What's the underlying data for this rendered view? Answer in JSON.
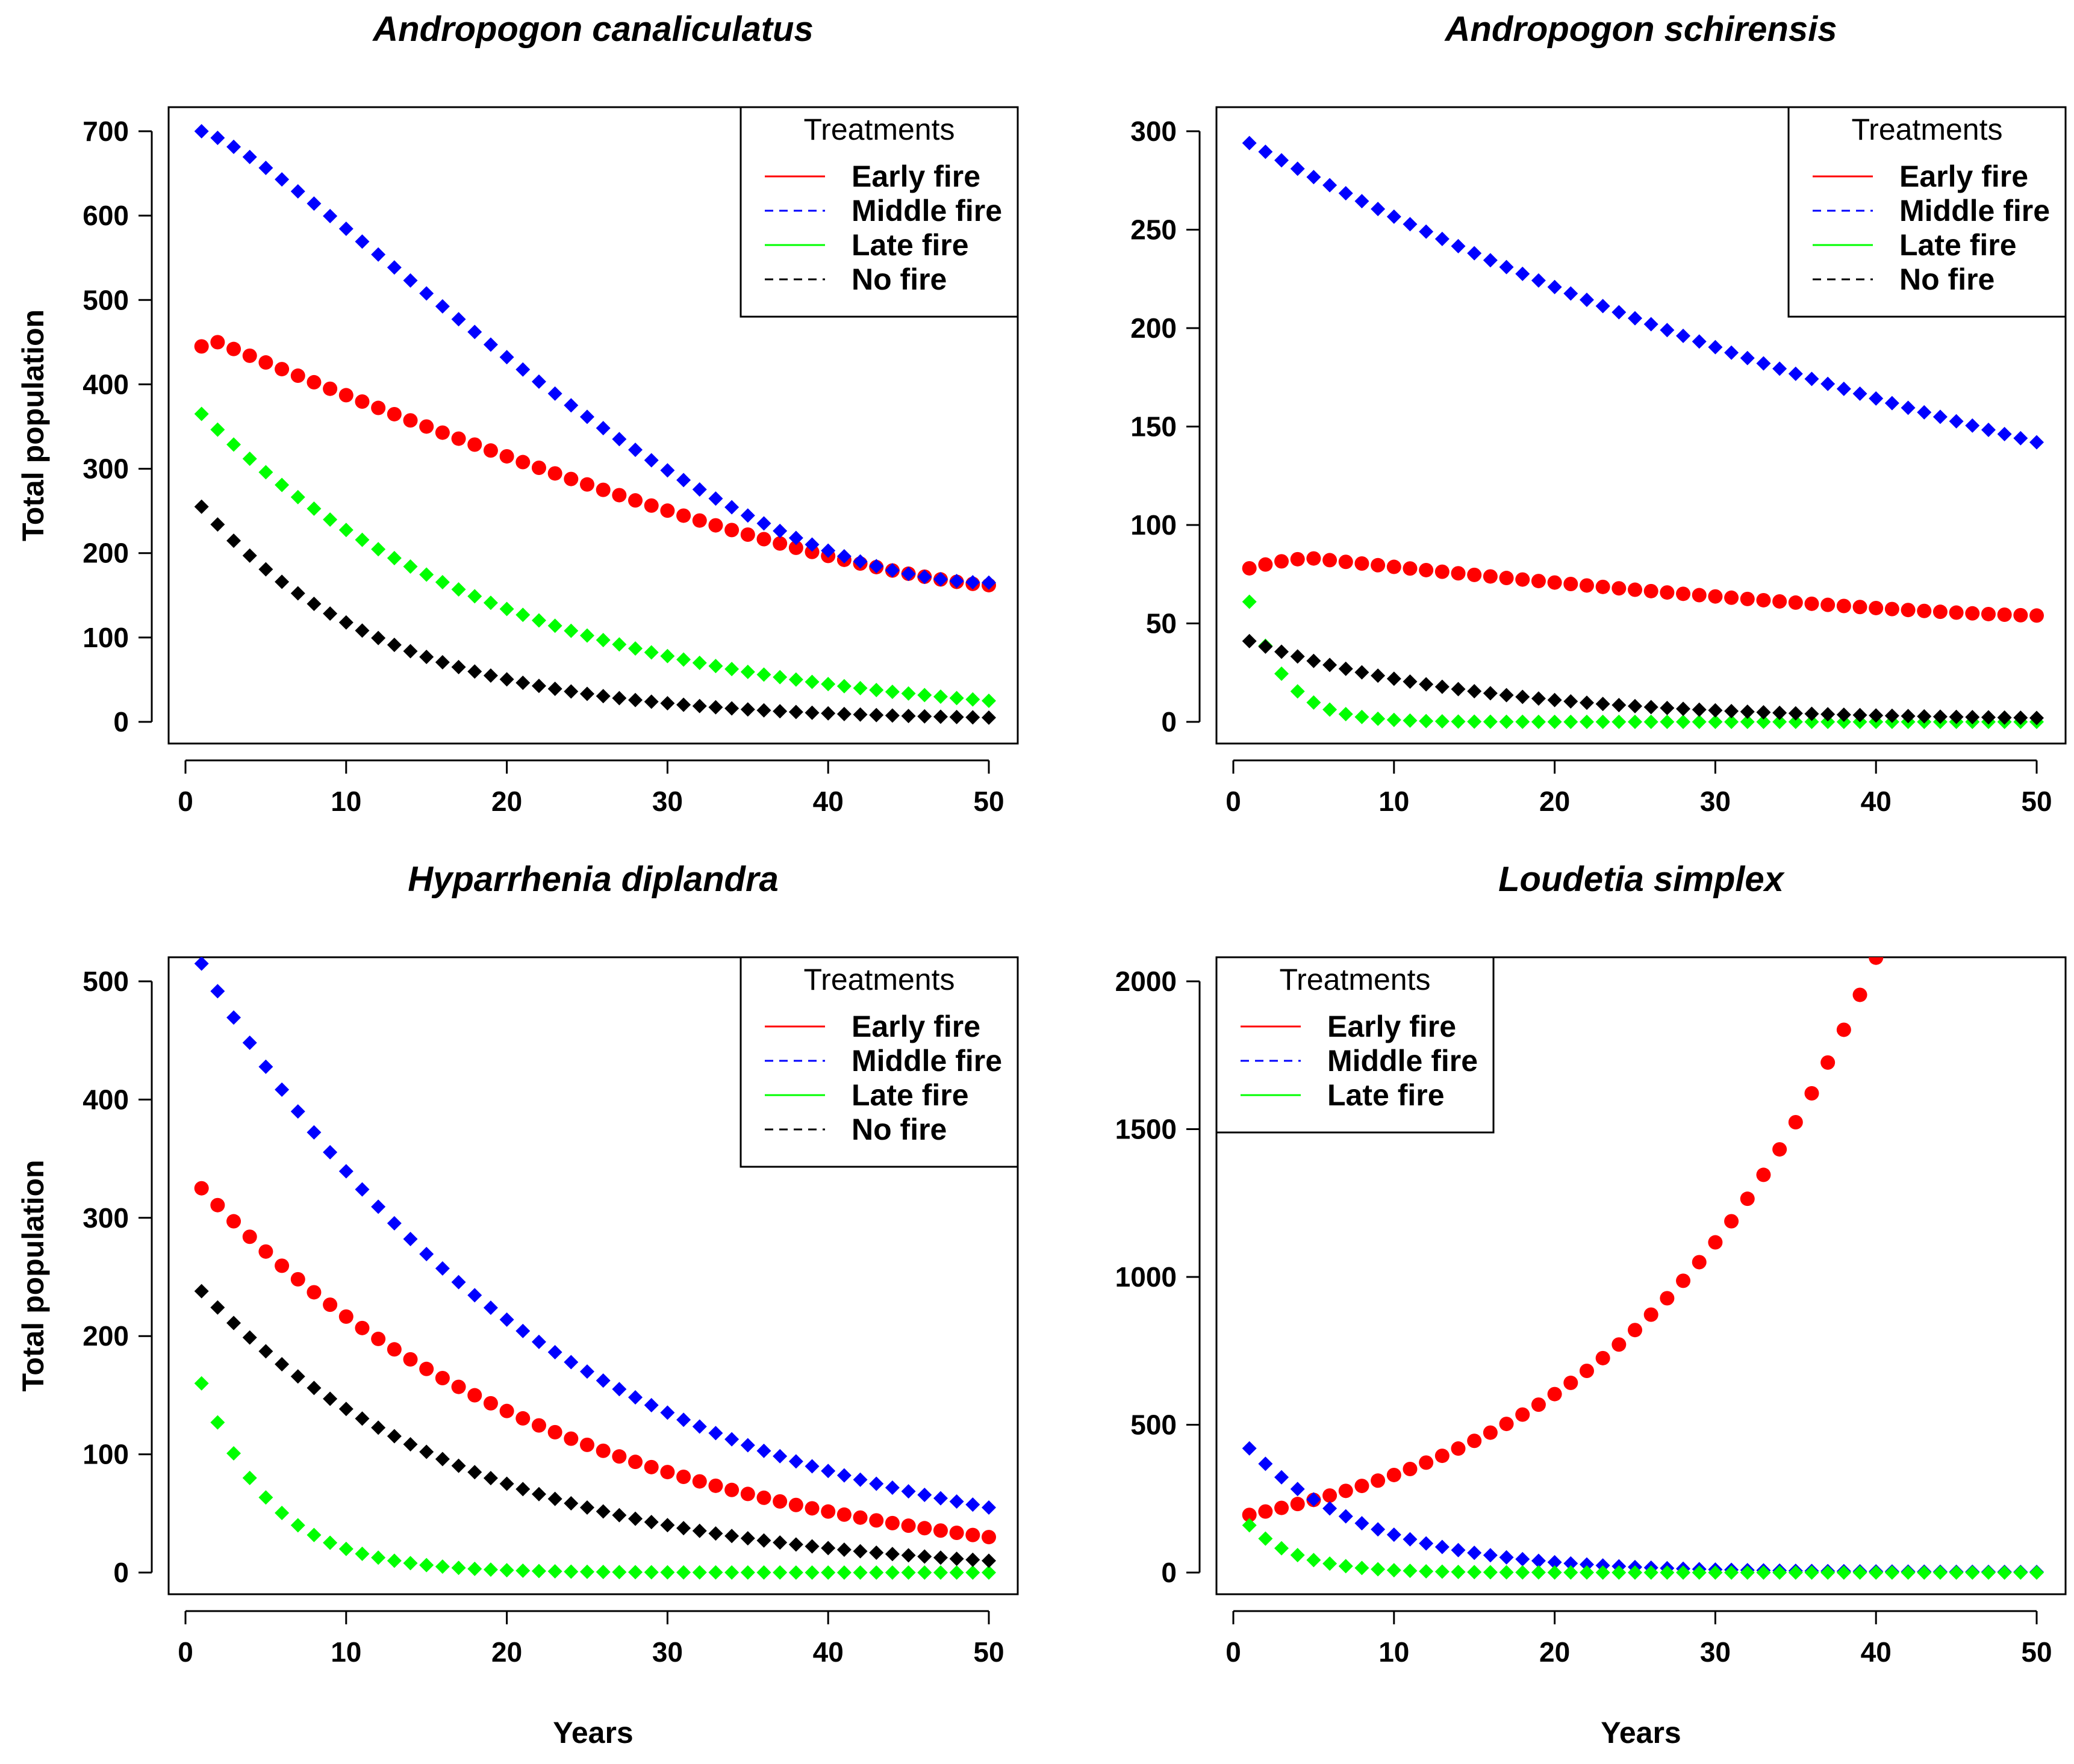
{
  "colors": {
    "early_fire": "#ff0000",
    "middle_fire": "#0000ff",
    "late_fire": "#00ff00",
    "no_fire": "#000000"
  },
  "chart_data": [
    {
      "type": "scatter",
      "title": "Andropogon canaliculatus",
      "xlabel": "",
      "ylabel": "Total population",
      "xlim": [
        0,
        50
      ],
      "ylim": [
        0,
        700
      ],
      "xticks": [
        0,
        10,
        20,
        30,
        40,
        50
      ],
      "yticks": [
        0,
        100,
        200,
        300,
        400,
        500,
        600,
        700
      ],
      "legend": {
        "title": "Treatments",
        "position": "top-right"
      },
      "series": [
        {
          "name": "Early fire",
          "marker": "circle",
          "color": "#ff0000",
          "model": "hump",
          "x_start": 1,
          "x_end": 50,
          "y_start": 445,
          "peak_x": 2,
          "peak_y": 450,
          "y_end": 162
        },
        {
          "name": "Middle fire",
          "marker": "diamond",
          "color": "#0000ff",
          "model": "sigmoid",
          "x_start": 1,
          "x_end": 50,
          "y_start": 700,
          "y_mid": 300,
          "x_mid": 30,
          "y_end": 165
        },
        {
          "name": "Late fire",
          "marker": "diamond",
          "color": "#00ff00",
          "model": "decay",
          "x_start": 1,
          "x_end": 50,
          "y_start": 365,
          "y_mid": 78,
          "x_mid": 30,
          "y_end": 25
        },
        {
          "name": "No fire",
          "marker": "diamond",
          "color": "#000000",
          "model": "decay",
          "x_start": 1,
          "x_end": 50,
          "y_start": 255,
          "y_mid": 22,
          "x_mid": 30,
          "y_end": 5
        }
      ]
    },
    {
      "type": "scatter",
      "title": "Andropogon schirensis",
      "xlabel": "",
      "ylabel": "",
      "xlim": [
        0,
        50
      ],
      "ylim": [
        0,
        300
      ],
      "xticks": [
        0,
        10,
        20,
        30,
        40,
        50
      ],
      "yticks": [
        0,
        50,
        100,
        150,
        200,
        250,
        300
      ],
      "legend": {
        "title": "Treatments",
        "position": "top-right"
      },
      "series": [
        {
          "name": "Early fire",
          "marker": "circle",
          "color": "#ff0000",
          "model": "hump",
          "x_start": 1,
          "x_end": 50,
          "y_start": 78,
          "peak_x": 5,
          "peak_y": 83,
          "y_end": 54
        },
        {
          "name": "Middle fire",
          "marker": "diamond",
          "color": "#0000ff",
          "model": "decay",
          "x_start": 1,
          "x_end": 50,
          "y_start": 294,
          "y_mid": 205,
          "x_mid": 25,
          "y_end": 142
        },
        {
          "name": "Late fire",
          "marker": "diamond",
          "color": "#00ff00",
          "model": "decay",
          "x_start": 1,
          "x_end": 50,
          "y_start": 61,
          "y_mid": 1,
          "x_mid": 10,
          "y_end": 0
        },
        {
          "name": "No fire",
          "marker": "diamond",
          "color": "#000000",
          "model": "decay",
          "x_start": 1,
          "x_end": 50,
          "y_start": 41,
          "y_mid": 8,
          "x_mid": 25,
          "y_end": 2
        }
      ]
    },
    {
      "type": "scatter",
      "title": "Hyparrhenia diplandra",
      "xlabel": "Years",
      "ylabel": "Total population",
      "xlim": [
        0,
        50
      ],
      "ylim": [
        0,
        500
      ],
      "xticks": [
        0,
        10,
        20,
        30,
        40,
        50
      ],
      "yticks": [
        0,
        100,
        200,
        300,
        400,
        500
      ],
      "legend": {
        "title": "Treatments",
        "position": "top-right"
      },
      "series": [
        {
          "name": "Early fire",
          "marker": "circle",
          "color": "#ff0000",
          "model": "decay",
          "x_start": 1,
          "x_end": 50,
          "y_start": 325,
          "y_mid": 108,
          "x_mid": 25,
          "y_end": 30
        },
        {
          "name": "Middle fire",
          "marker": "diamond",
          "color": "#0000ff",
          "model": "decay",
          "x_start": 1,
          "x_end": 50,
          "y_start": 515,
          "y_mid": 170,
          "x_mid": 25,
          "y_end": 55
        },
        {
          "name": "Late fire",
          "marker": "diamond",
          "color": "#00ff00",
          "model": "decay",
          "x_start": 1,
          "x_end": 50,
          "y_start": 160,
          "y_mid": 20,
          "x_mid": 10,
          "y_end": 0
        },
        {
          "name": "No fire",
          "marker": "diamond",
          "color": "#000000",
          "model": "decay",
          "x_start": 1,
          "x_end": 50,
          "y_start": 238,
          "y_mid": 55,
          "x_mid": 25,
          "y_end": 10
        }
      ]
    },
    {
      "type": "scatter",
      "title": "Loudetia simplex",
      "xlabel": "Years",
      "ylabel": "",
      "xlim": [
        0,
        50
      ],
      "ylim": [
        0,
        2000
      ],
      "xticks": [
        0,
        10,
        20,
        30,
        40,
        50
      ],
      "yticks": [
        0,
        500,
        1000,
        1500,
        2000
      ],
      "legend": {
        "title": "Treatments",
        "position": "top-left"
      },
      "series": [
        {
          "name": "Early fire",
          "marker": "circle",
          "color": "#ff0000",
          "model": "growth",
          "x_start": 1,
          "x_end": 40,
          "y_start": 195,
          "y_mid": 1050,
          "x_mid": 29,
          "y_end": 2080
        },
        {
          "name": "Middle fire",
          "marker": "diamond",
          "color": "#0000ff",
          "model": "decay",
          "x_start": 1,
          "x_end": 50,
          "y_start": 420,
          "y_mid": 35,
          "x_mid": 20,
          "y_end": 2
        },
        {
          "name": "Late fire",
          "marker": "diamond",
          "color": "#00ff00",
          "model": "decay",
          "x_start": 1,
          "x_end": 50,
          "y_start": 160,
          "y_mid": 8,
          "x_mid": 10,
          "y_end": 0
        }
      ]
    }
  ]
}
